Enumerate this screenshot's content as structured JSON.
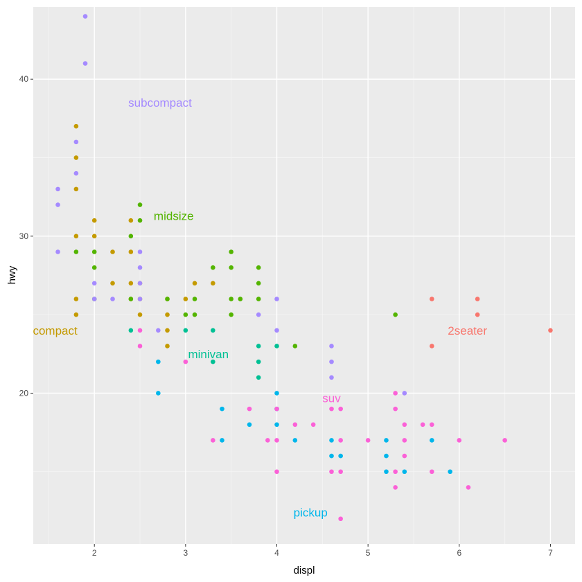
{
  "chart_data": {
    "type": "scatter",
    "xlabel": "displ",
    "ylabel": "hwy",
    "xlim": [
      1.33,
      7.27
    ],
    "ylim": [
      10.4,
      44.6
    ],
    "x_ticks": [
      2,
      3,
      4,
      5,
      6,
      7
    ],
    "y_ticks": [
      20,
      30,
      40
    ],
    "x_tick_labels": [
      "2",
      "3",
      "4",
      "5",
      "6",
      "7"
    ],
    "y_tick_labels": [
      "20",
      "30",
      "40"
    ],
    "grid": true,
    "background": "#ebebeb",
    "colors": {
      "2seater": "#f8766d",
      "compact": "#c49a00",
      "midsize": "#53b400",
      "minivan": "#00c094",
      "pickup": "#00b6eb",
      "subcompact": "#a58aff",
      "suv": "#fb61d7"
    },
    "class_labels": [
      {
        "text": "subcompact",
        "class": "subcompact",
        "x": 2.72,
        "y": 38.5
      },
      {
        "text": "midsize",
        "class": "midsize",
        "x": 2.87,
        "y": 31.3
      },
      {
        "text": "compact",
        "class": "compact",
        "x": 1.57,
        "y": 24.0
      },
      {
        "text": "2seater",
        "class": "2seater",
        "x": 6.09,
        "y": 24.0
      },
      {
        "text": "minivan",
        "class": "minivan",
        "x": 3.25,
        "y": 22.5
      },
      {
        "text": "suv",
        "class": "suv",
        "x": 4.6,
        "y": 19.7
      },
      {
        "text": "pickup",
        "class": "pickup",
        "x": 4.37,
        "y": 12.4
      }
    ],
    "series": [
      {
        "class": "2seater",
        "points": [
          [
            5.7,
            26
          ],
          [
            5.7,
            23
          ],
          [
            6.2,
            26
          ],
          [
            6.2,
            25
          ],
          [
            7.0,
            24
          ]
        ]
      },
      {
        "class": "compact",
        "points": [
          [
            1.8,
            37
          ],
          [
            1.8,
            35
          ],
          [
            1.8,
            33
          ],
          [
            1.8,
            30
          ],
          [
            1.8,
            26
          ],
          [
            1.8,
            25
          ],
          [
            2.0,
            31
          ],
          [
            2.0,
            30
          ],
          [
            2.2,
            29
          ],
          [
            2.2,
            27
          ],
          [
            2.4,
            31
          ],
          [
            2.4,
            29
          ],
          [
            2.4,
            27
          ],
          [
            2.4,
            26
          ],
          [
            2.5,
            27
          ],
          [
            2.5,
            26
          ],
          [
            2.5,
            25
          ],
          [
            2.8,
            26
          ],
          [
            2.8,
            25
          ],
          [
            2.8,
            23
          ],
          [
            2.8,
            24
          ],
          [
            3.0,
            26
          ],
          [
            3.1,
            27
          ],
          [
            3.3,
            27
          ]
        ]
      },
      {
        "class": "midsize",
        "points": [
          [
            1.8,
            29
          ],
          [
            2.0,
            29
          ],
          [
            2.0,
            28
          ],
          [
            2.0,
            26
          ],
          [
            2.4,
            30
          ],
          [
            2.4,
            26
          ],
          [
            2.5,
            32
          ],
          [
            2.5,
            31
          ],
          [
            2.8,
            26
          ],
          [
            3.0,
            25
          ],
          [
            3.1,
            26
          ],
          [
            3.1,
            25
          ],
          [
            3.3,
            28
          ],
          [
            3.5,
            29
          ],
          [
            3.5,
            28
          ],
          [
            3.5,
            26
          ],
          [
            3.5,
            25
          ],
          [
            3.6,
            26
          ],
          [
            3.8,
            28
          ],
          [
            3.8,
            27
          ],
          [
            3.8,
            26
          ],
          [
            4.2,
            23
          ],
          [
            5.3,
            25
          ]
        ]
      },
      {
        "class": "minivan",
        "points": [
          [
            2.4,
            24
          ],
          [
            3.0,
            24
          ],
          [
            3.3,
            24
          ],
          [
            3.3,
            22
          ],
          [
            3.8,
            23
          ],
          [
            3.8,
            22
          ],
          [
            3.8,
            21
          ],
          [
            4.0,
            23
          ]
        ]
      },
      {
        "class": "pickup",
        "points": [
          [
            2.7,
            22
          ],
          [
            2.7,
            20
          ],
          [
            3.4,
            19
          ],
          [
            3.4,
            17
          ],
          [
            3.7,
            18
          ],
          [
            4.0,
            20
          ],
          [
            4.0,
            19
          ],
          [
            4.0,
            18
          ],
          [
            4.2,
            17
          ],
          [
            4.6,
            17
          ],
          [
            4.6,
            16
          ],
          [
            4.7,
            16
          ],
          [
            5.2,
            17
          ],
          [
            5.2,
            16
          ],
          [
            5.2,
            15
          ],
          [
            5.4,
            15
          ],
          [
            5.7,
            17
          ],
          [
            5.9,
            15
          ]
        ]
      },
      {
        "class": "subcompact",
        "points": [
          [
            1.6,
            33
          ],
          [
            1.6,
            32
          ],
          [
            1.6,
            29
          ],
          [
            1.8,
            36
          ],
          [
            1.8,
            34
          ],
          [
            1.9,
            44
          ],
          [
            1.9,
            41
          ],
          [
            2.0,
            27
          ],
          [
            2.0,
            26
          ],
          [
            2.2,
            26
          ],
          [
            2.5,
            29
          ],
          [
            2.5,
            28
          ],
          [
            2.5,
            27
          ],
          [
            2.5,
            26
          ],
          [
            2.7,
            24
          ],
          [
            3.8,
            25
          ],
          [
            4.0,
            26
          ],
          [
            4.0,
            24
          ],
          [
            4.6,
            23
          ],
          [
            4.6,
            22
          ],
          [
            4.6,
            21
          ],
          [
            5.4,
            20
          ]
        ]
      },
      {
        "class": "suv",
        "points": [
          [
            2.5,
            24
          ],
          [
            2.5,
            23
          ],
          [
            3.0,
            22
          ],
          [
            3.3,
            17
          ],
          [
            3.7,
            19
          ],
          [
            3.9,
            17
          ],
          [
            4.0,
            19
          ],
          [
            4.0,
            17
          ],
          [
            4.0,
            15
          ],
          [
            4.2,
            18
          ],
          [
            4.4,
            18
          ],
          [
            4.6,
            19
          ],
          [
            4.6,
            15
          ],
          [
            4.7,
            19
          ],
          [
            4.7,
            17
          ],
          [
            4.7,
            15
          ],
          [
            4.7,
            12
          ],
          [
            5.0,
            17
          ],
          [
            5.3,
            20
          ],
          [
            5.3,
            19
          ],
          [
            5.3,
            15
          ],
          [
            5.3,
            14
          ],
          [
            5.4,
            18
          ],
          [
            5.4,
            17
          ],
          [
            5.4,
            16
          ],
          [
            5.6,
            18
          ],
          [
            5.7,
            18
          ],
          [
            5.7,
            15
          ],
          [
            6.0,
            17
          ],
          [
            6.1,
            14
          ],
          [
            6.5,
            17
          ]
        ]
      }
    ]
  }
}
